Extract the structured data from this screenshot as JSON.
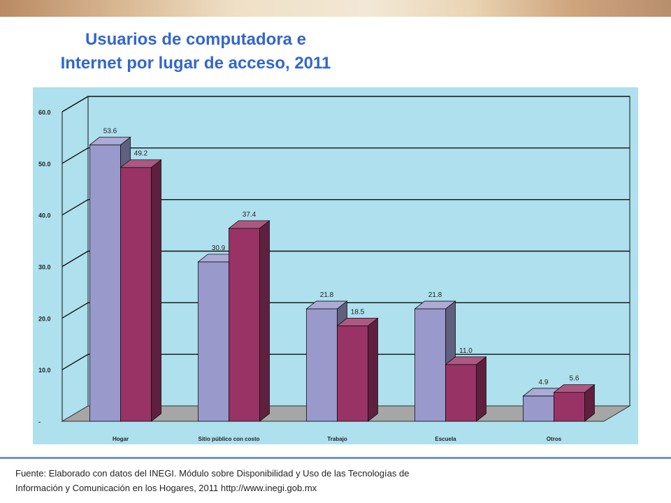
{
  "title_lines": [
    "Usuarios de computadora e",
    "Internet por lugar de acceso, 2011"
  ],
  "source_lines": [
    "Fuente: Elaborado con datos del INEGI. Módulo sobre Disponibilidad y Uso de las Tecnologías de",
    "Información y Comunicación en los Hogares, 2011 http://www.inegi.gob.mx"
  ],
  "chart_data": {
    "type": "bar",
    "title": "Usuarios de computadora e Internet por lugar de acceso, 2011",
    "categories": [
      "Hogar",
      "Sitio público con costo",
      "Trabajo",
      "Escuela",
      "Otros"
    ],
    "series": [
      {
        "values": [
          53.6,
          30.9,
          21.8,
          21.8,
          4.9
        ],
        "color": "#9999cc"
      },
      {
        "values": [
          49.2,
          37.4,
          18.5,
          11.0,
          5.6
        ],
        "color": "#993366"
      }
    ],
    "ylim": [
      0,
      60
    ],
    "yticks": [
      "-",
      "10.0",
      "20.0",
      "30.0",
      "40.0",
      "50.0",
      "60.0"
    ],
    "grid": true,
    "style": "3d",
    "background": "#aee0ee",
    "floor_color": "#a6a6a6"
  }
}
